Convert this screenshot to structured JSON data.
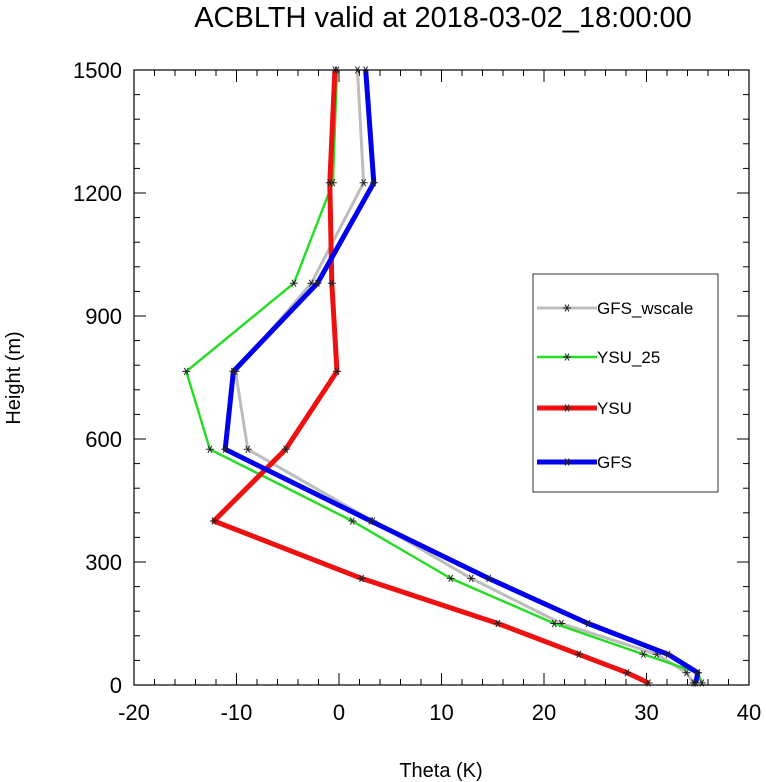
{
  "chart_data": {
    "type": "line",
    "title": "ACBLTH valid at 2018-03-02_18:00:00",
    "xlabel": "Theta (K)",
    "ylabel": "Height (m)",
    "xlim": [
      -20,
      40
    ],
    "ylim": [
      0,
      1500
    ],
    "xticks": [
      -20,
      -10,
      0,
      10,
      20,
      30,
      40
    ],
    "yticks": [
      0,
      300,
      600,
      900,
      1200,
      1500
    ],
    "xtick_labels": [
      "-20",
      "-10",
      "0",
      "10",
      "20",
      "30",
      "40"
    ],
    "ytick_labels": [
      "0",
      "300",
      "600",
      "900",
      "1200",
      "1500"
    ],
    "grid": false,
    "legend_position": "right",
    "series": [
      {
        "name": "GFS_wscale",
        "color": "#bdbdbd",
        "points": [
          [
            34.6,
            5
          ],
          [
            33.9,
            30
          ],
          [
            31.0,
            75
          ],
          [
            21.7,
            150
          ],
          [
            12.9,
            260
          ],
          [
            3.3,
            400
          ],
          [
            -8.9,
            575
          ],
          [
            -10.1,
            765
          ],
          [
            -2.7,
            980
          ],
          [
            2.4,
            1225
          ],
          [
            1.8,
            1500
          ]
        ]
      },
      {
        "name": "YSU_25",
        "color": "#22dd22",
        "points": [
          [
            35.4,
            5
          ],
          [
            35.0,
            30
          ],
          [
            29.7,
            75
          ],
          [
            21.0,
            150
          ],
          [
            10.9,
            260
          ],
          [
            1.3,
            400
          ],
          [
            -12.6,
            575
          ],
          [
            -14.9,
            765
          ],
          [
            -4.4,
            980
          ],
          [
            -0.6,
            1225
          ],
          [
            -0.2,
            1500
          ]
        ]
      },
      {
        "name": "YSU",
        "color": "#ee1111",
        "points": [
          [
            30.2,
            5
          ],
          [
            28.1,
            30
          ],
          [
            23.4,
            75
          ],
          [
            15.5,
            150
          ],
          [
            2.2,
            260
          ],
          [
            -12.2,
            400
          ],
          [
            -5.2,
            575
          ],
          [
            -0.2,
            765
          ],
          [
            -0.7,
            980
          ],
          [
            -0.9,
            1225
          ],
          [
            -0.4,
            1500
          ]
        ]
      },
      {
        "name": "GFS",
        "color": "#0000ee",
        "points": [
          [
            34.8,
            5
          ],
          [
            35.0,
            30
          ],
          [
            32.1,
            75
          ],
          [
            24.3,
            150
          ],
          [
            14.6,
            260
          ],
          [
            3.1,
            400
          ],
          [
            -11.1,
            575
          ],
          [
            -10.3,
            765
          ],
          [
            -2.1,
            980
          ],
          [
            3.4,
            1225
          ],
          [
            2.6,
            1500
          ]
        ]
      }
    ]
  }
}
